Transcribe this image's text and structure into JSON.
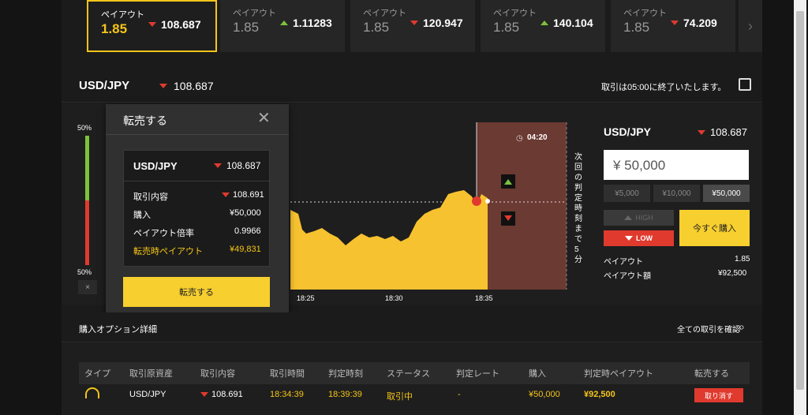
{
  "payouts": [
    {
      "label": "ペイアウト",
      "value": "1.85",
      "rate": "108.687",
      "dir": "down",
      "active": true
    },
    {
      "label": "ペイアウト",
      "value": "1.85",
      "rate": "1.11283",
      "dir": "up",
      "active": false
    },
    {
      "label": "ペイアウト",
      "value": "1.85",
      "rate": "120.947",
      "dir": "down",
      "active": false
    },
    {
      "label": "ペイアウト",
      "value": "1.85",
      "rate": "140.104",
      "dir": "up",
      "active": false
    },
    {
      "label": "ペイアウト",
      "value": "1.85",
      "rate": "74.209",
      "dir": "down",
      "active": false
    }
  ],
  "pair": {
    "name": "USD/JPY",
    "rate": "108.687",
    "notice": "取引は05:00に終了いたします。"
  },
  "meter": {
    "top": "50%",
    "bottom": "50%",
    "close": "×"
  },
  "resale_panel": {
    "title": "転売する",
    "pair": "USD/JPY",
    "pair_rate": "108.687",
    "rows": [
      {
        "label": "取引内容",
        "value": "108.691"
      },
      {
        "label": "購入",
        "value": "¥50,000"
      },
      {
        "label": "ペイアウト倍率",
        "value": "0.9966"
      },
      {
        "label": "転売時ペイアウト",
        "value": "¥49,831"
      }
    ],
    "button": "転売する"
  },
  "chart": {
    "timer": "04:20",
    "vertical_text": "次回の判定時刻まで5分",
    "ticks": [
      "18:25",
      "18:30",
      "18:35"
    ]
  },
  "order": {
    "pair": "USD/JPY",
    "rate": "108.687",
    "amount": "¥ 50,000",
    "presets": [
      "¥5,000",
      "¥10,000",
      "¥50,000"
    ],
    "high": "HIGH",
    "low": "LOW",
    "buy_now": "今すぐ購入",
    "payout_label": "ペイアウト",
    "payout_value": "1.85",
    "payout_amount_label": "ペイアウト額",
    "payout_amount_value": "¥92,500"
  },
  "details": {
    "title": "購入オプション詳細",
    "view_all": "全ての取引を確認",
    "headers": [
      "タイプ",
      "取引原資産",
      "取引内容",
      "取引時間",
      "判定時刻",
      "ステータス",
      "判定レート",
      "購入",
      "判定時ペイアウト",
      "転売する"
    ],
    "row": {
      "asset": "USD/JPY",
      "rate": "108.691",
      "time": "18:34:39",
      "judge": "18:39:39",
      "status": "取引中",
      "judge_rate": "-",
      "purchase": "¥50,000",
      "payout": "¥92,500",
      "cancel": "取り消す"
    }
  },
  "colors": {
    "accent": "#f7cf2f",
    "down": "#e03a2e",
    "up": "#7cc23b"
  }
}
